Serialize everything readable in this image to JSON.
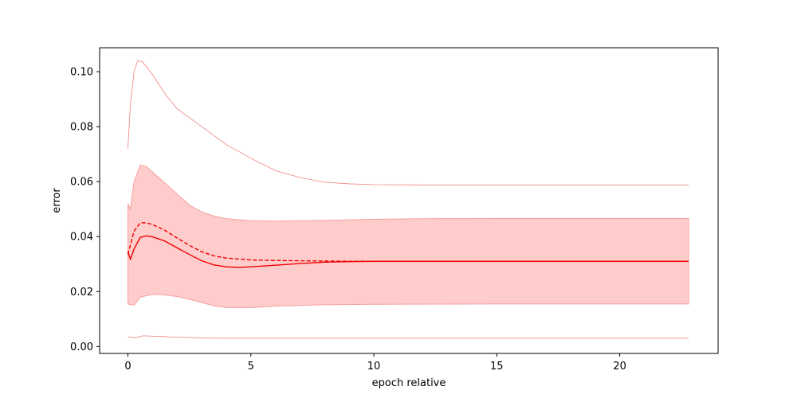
{
  "chart_data": {
    "type": "line",
    "xlabel": "epoch relative",
    "ylabel": "error",
    "xlim": [
      -1.15,
      24.0
    ],
    "ylim": [
      -0.0025,
      0.1087
    ],
    "x_ticks": [
      0,
      5,
      10,
      15,
      20
    ],
    "x_tick_labels": [
      "0",
      "5",
      "10",
      "15",
      "20"
    ],
    "y_ticks": [
      0.0,
      0.02,
      0.04,
      0.06,
      0.08,
      0.1
    ],
    "y_tick_labels": [
      "0.00",
      "0.02",
      "0.04",
      "0.06",
      "0.08",
      "0.10"
    ],
    "grid": false,
    "colors": {
      "line": "#ee0000",
      "band_fill": "#ffcccc",
      "band_edge": "#f5a0a0",
      "outer": "#f08080",
      "axes": "#000000"
    },
    "series": [
      {
        "style": "solid",
        "points": [
          [
            0,
            0.0345
          ],
          [
            0.1,
            0.0318
          ],
          [
            0.25,
            0.0355
          ],
          [
            0.5,
            0.0397
          ],
          [
            0.75,
            0.0403
          ],
          [
            1,
            0.0399
          ],
          [
            1.5,
            0.0384
          ],
          [
            2,
            0.0359
          ],
          [
            2.5,
            0.0335
          ],
          [
            3,
            0.0312
          ],
          [
            3.5,
            0.0297
          ],
          [
            4,
            0.029
          ],
          [
            4.5,
            0.0288
          ],
          [
            5,
            0.029
          ],
          [
            6,
            0.0296
          ],
          [
            7,
            0.0302
          ],
          [
            8,
            0.0307
          ],
          [
            9,
            0.0309
          ],
          [
            10,
            0.031
          ],
          [
            12,
            0.031
          ],
          [
            15,
            0.031
          ],
          [
            18,
            0.031
          ],
          [
            22.8,
            0.031
          ]
        ]
      },
      {
        "style": "dashed",
        "points": [
          [
            0,
            0.0335
          ],
          [
            0.25,
            0.042
          ],
          [
            0.5,
            0.045
          ],
          [
            0.75,
            0.045
          ],
          [
            1,
            0.0444
          ],
          [
            1.5,
            0.0423
          ],
          [
            2,
            0.0395
          ],
          [
            2.5,
            0.0368
          ],
          [
            3,
            0.0345
          ],
          [
            3.5,
            0.033
          ],
          [
            4,
            0.0322
          ],
          [
            5,
            0.0315
          ],
          [
            6,
            0.0313
          ],
          [
            7,
            0.0312
          ],
          [
            8,
            0.0311
          ],
          [
            10,
            0.031
          ],
          [
            15,
            0.031
          ],
          [
            22.8,
            0.031
          ]
        ]
      },
      {
        "style": "band",
        "upper": [
          [
            0,
            0.052
          ],
          [
            0.1,
            0.05
          ],
          [
            0.25,
            0.06
          ],
          [
            0.5,
            0.066
          ],
          [
            0.75,
            0.0655
          ],
          [
            1,
            0.0635
          ],
          [
            1.5,
            0.0595
          ],
          [
            2,
            0.0555
          ],
          [
            2.5,
            0.0515
          ],
          [
            3,
            0.049
          ],
          [
            3.5,
            0.0475
          ],
          [
            4,
            0.0465
          ],
          [
            5,
            0.0458
          ],
          [
            6,
            0.0456
          ],
          [
            8,
            0.0459
          ],
          [
            10,
            0.0463
          ],
          [
            12,
            0.0465
          ],
          [
            15,
            0.0466
          ],
          [
            22.8,
            0.0466
          ]
        ],
        "lower": [
          [
            0,
            0.0155
          ],
          [
            0.25,
            0.015
          ],
          [
            0.5,
            0.018
          ],
          [
            1,
            0.019
          ],
          [
            1.5,
            0.0188
          ],
          [
            2,
            0.0182
          ],
          [
            2.5,
            0.0172
          ],
          [
            3,
            0.016
          ],
          [
            3.5,
            0.0148
          ],
          [
            4,
            0.0142
          ],
          [
            5,
            0.0142
          ],
          [
            6,
            0.0147
          ],
          [
            8,
            0.0152
          ],
          [
            10,
            0.0154
          ],
          [
            15,
            0.0155
          ],
          [
            22.8,
            0.0155
          ]
        ]
      },
      {
        "style": "outer-upper",
        "points": [
          [
            0,
            0.072
          ],
          [
            0.1,
            0.088
          ],
          [
            0.25,
            0.1
          ],
          [
            0.4,
            0.104
          ],
          [
            0.6,
            0.1035
          ],
          [
            1,
            0.099
          ],
          [
            1.5,
            0.092
          ],
          [
            2,
            0.0865
          ],
          [
            3,
            0.08
          ],
          [
            4,
            0.0735
          ],
          [
            5,
            0.0685
          ],
          [
            6,
            0.064
          ],
          [
            7,
            0.0615
          ],
          [
            8,
            0.0598
          ],
          [
            9,
            0.0592
          ],
          [
            10,
            0.0589
          ],
          [
            12,
            0.0588
          ],
          [
            15,
            0.0588
          ],
          [
            22.8,
            0.0588
          ]
        ]
      },
      {
        "style": "outer-lower",
        "points": [
          [
            0,
            0.0035
          ],
          [
            0.3,
            0.0032
          ],
          [
            0.6,
            0.0039
          ],
          [
            1,
            0.0038
          ],
          [
            1.5,
            0.0036
          ],
          [
            2,
            0.0034
          ],
          [
            3,
            0.0031
          ],
          [
            4,
            0.003
          ],
          [
            5,
            0.003
          ],
          [
            7,
            0.003
          ],
          [
            10,
            0.003
          ],
          [
            15,
            0.003
          ],
          [
            22.8,
            0.003
          ]
        ]
      }
    ]
  }
}
